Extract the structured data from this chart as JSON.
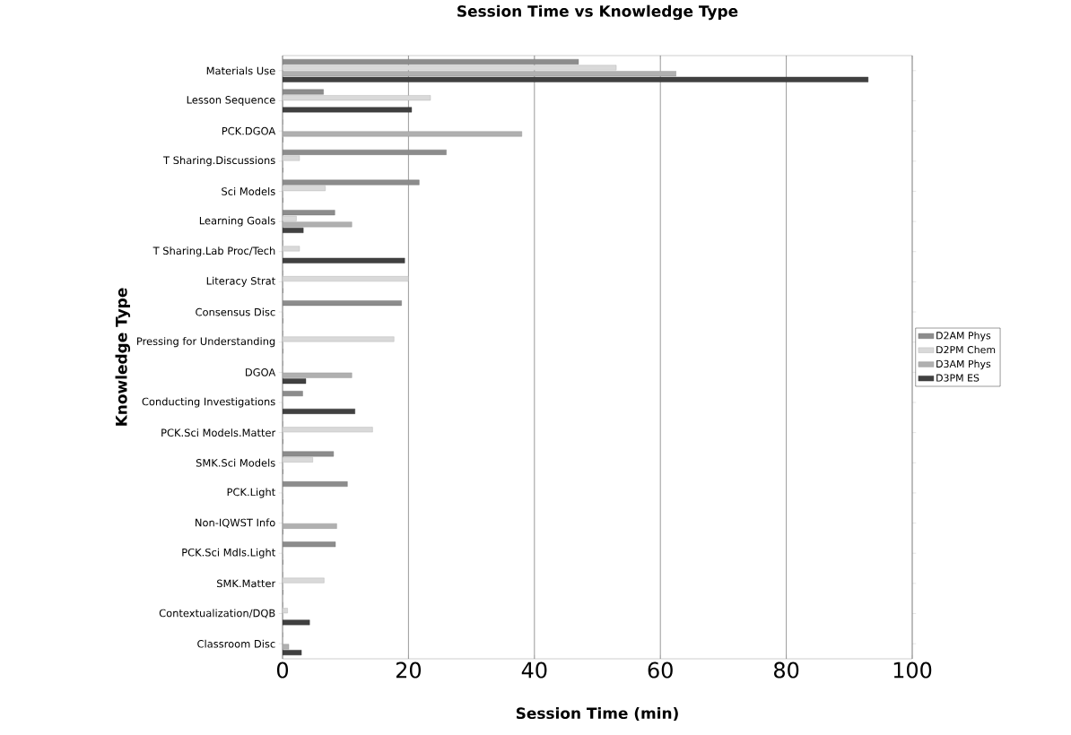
{
  "chart_data": {
    "type": "bar",
    "orientation": "horizontal",
    "title": "Session Time vs Knowledge Type",
    "xlabel": "Session Time (min)",
    "ylabel": "Knowledge Type",
    "categories": [
      "Materials Use",
      "Lesson Sequence",
      "PCK.DGOA",
      "T Sharing.Discussions",
      "Sci Models",
      "Learning Goals",
      "T Sharing.Lab Proc/Tech",
      "Literacy Strat",
      "Consensus Disc",
      "Pressing for Understanding",
      "DGOA",
      "Conducting Investigations",
      "PCK.Sci Models.Matter",
      "SMK.Sci Models",
      "PCK.Light",
      "Non-IQWST Info",
      "PCK.Sci Mdls.Light",
      "SMK.Matter",
      "Contextualization/DQB",
      "Classroom Disc"
    ],
    "series": [
      {
        "name": "D2AM Phys",
        "color": "#8c8c8c",
        "values": [
          47,
          6.5,
          0,
          26,
          21.7,
          8.3,
          0,
          0,
          18.9,
          0,
          0,
          3.2,
          0,
          8.1,
          10.3,
          0,
          8.4,
          0,
          0,
          0
        ]
      },
      {
        "name": "D2PM Chem",
        "color": "#d9d9d9",
        "values": [
          53,
          23.5,
          0,
          2.7,
          6.8,
          2.2,
          2.7,
          20,
          0,
          17.7,
          0,
          0,
          14.3,
          4.8,
          0,
          0,
          0,
          6.6,
          0.8,
          0
        ]
      },
      {
        "name": "D3AM Phys",
        "color": "#b0b0b0",
        "values": [
          62.5,
          0,
          38,
          0,
          0,
          11,
          0,
          0,
          0,
          0,
          11,
          0,
          0,
          0,
          0,
          8.6,
          0,
          0,
          0,
          1
        ]
      },
      {
        "name": "D3PM ES",
        "color": "#404040",
        "values": [
          93,
          20.5,
          0,
          0,
          0,
          3.3,
          19.4,
          0,
          0,
          0,
          3.7,
          11.5,
          0,
          0,
          0,
          0,
          0,
          0,
          4.3,
          3
        ]
      }
    ],
    "xlim": [
      0,
      100
    ],
    "xticks": [
      0,
      20,
      40,
      60,
      80,
      100
    ],
    "grid": "x",
    "legend": "right"
  }
}
